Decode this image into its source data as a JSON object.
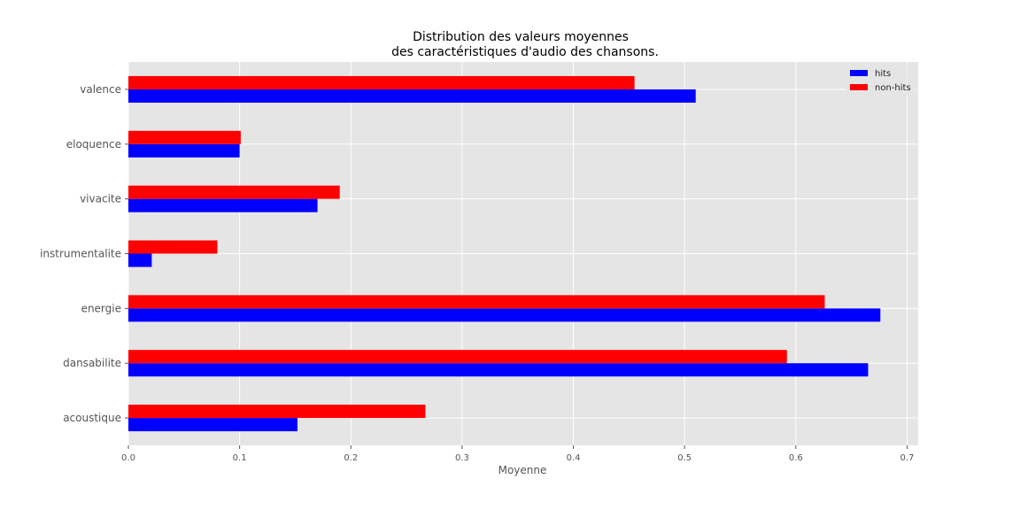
{
  "chart_data": {
    "type": "bar",
    "orientation": "horizontal",
    "title": [
      "Distribution des valeurs moyennes",
      "des caractéristiques d'audio des chansons."
    ],
    "xlabel": "Moyenne",
    "ylabel": "",
    "categories": [
      "acoustique",
      "dansabilite",
      "energie",
      "instrumentalite",
      "vivacite",
      "eloquence",
      "valence"
    ],
    "series": [
      {
        "name": "hits",
        "color": "#0000ff",
        "values": [
          0.152,
          0.665,
          0.676,
          0.021,
          0.17,
          0.1,
          0.51
        ]
      },
      {
        "name": "non-hits",
        "color": "#ff0000",
        "values": [
          0.267,
          0.592,
          0.626,
          0.08,
          0.19,
          0.101,
          0.455
        ]
      }
    ],
    "xlim": [
      0,
      0.71
    ],
    "xticks": [
      0,
      0.1,
      0.2,
      0.3,
      0.4,
      0.5,
      0.6,
      0.7
    ],
    "xtick_labels": [
      "0.0",
      "0.1",
      "0.2",
      "0.3",
      "0.4",
      "0.5",
      "0.6",
      "0.7"
    ],
    "grid": true,
    "legend_position": "top-right",
    "background": "#e5e5e5",
    "grid_color": "#ffffff"
  }
}
